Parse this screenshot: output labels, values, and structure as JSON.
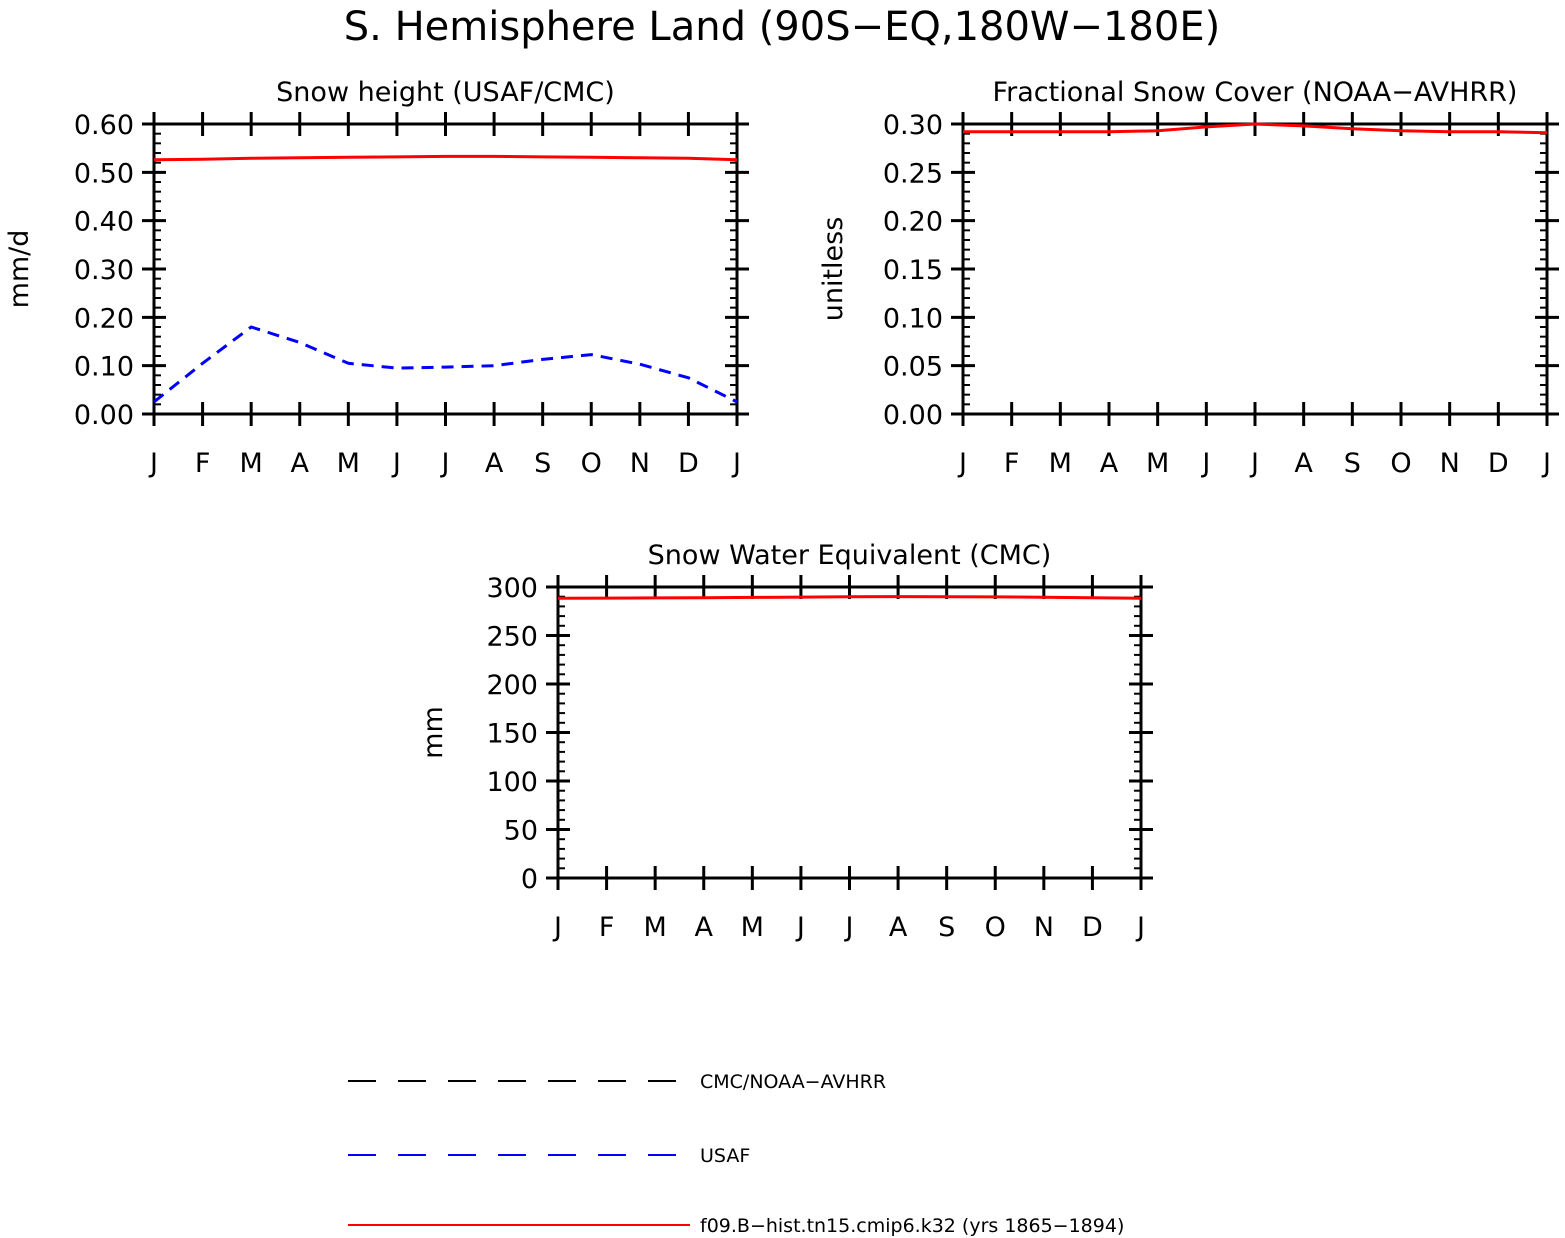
{
  "figure": {
    "title": "S. Hemisphere Land (90S−EQ,180W−180E)"
  },
  "colors": {
    "obs_line": "#000000",
    "usaf_line": "#0000ff",
    "model_line": "#ff0000",
    "axis": "#000000"
  },
  "legend": [
    {
      "label": "CMC/NOAA−AVHRR",
      "color": "#000000",
      "dash": "long-dash"
    },
    {
      "label": "USAF",
      "color": "#0000ff",
      "dash": "long-dash"
    },
    {
      "label": "f09.B−hist.tn15.cmip6.k32 (yrs 1865−1894)",
      "color": "#ff0000",
      "dash": "solid"
    }
  ],
  "chart_data": [
    {
      "type": "line",
      "title": "Snow height (USAF/CMC)",
      "ylabel": "mm/d",
      "xlabel": "",
      "categories": [
        "J",
        "F",
        "M",
        "A",
        "M",
        "J",
        "J",
        "A",
        "S",
        "O",
        "N",
        "D",
        "J"
      ],
      "ylim": [
        0,
        0.6
      ],
      "yticks": [
        "0.00",
        "0.10",
        "0.20",
        "0.30",
        "0.40",
        "0.50",
        "0.60"
      ],
      "series": [
        {
          "name": "CMC/NOAA−AVHRR",
          "color": "#000000",
          "dash": "long-dash",
          "values": [
            0,
            0,
            0,
            0,
            0,
            0,
            0,
            0,
            0,
            0,
            0,
            0,
            0
          ]
        },
        {
          "name": "USAF",
          "color": "#0000ff",
          "dash": "dash",
          "values": [
            0.025,
            0.105,
            0.18,
            0.148,
            0.105,
            0.095,
            0.097,
            0.1,
            0.113,
            0.123,
            0.103,
            0.075,
            0.025
          ]
        },
        {
          "name": "f09.B−hist.tn15.cmip6.k32 (yrs 1865−1894)",
          "color": "#ff0000",
          "dash": "solid",
          "values": [
            0.526,
            0.527,
            0.529,
            0.53,
            0.531,
            0.532,
            0.533,
            0.533,
            0.532,
            0.531,
            0.53,
            0.529,
            0.526
          ]
        }
      ]
    },
    {
      "type": "line",
      "title": "Fractional Snow Cover (NOAA−AVHRR)",
      "ylabel": "unitless",
      "xlabel": "",
      "categories": [
        "J",
        "F",
        "M",
        "A",
        "M",
        "J",
        "J",
        "A",
        "S",
        "O",
        "N",
        "D",
        "J"
      ],
      "ylim": [
        0,
        0.3
      ],
      "yticks": [
        "0.00",
        "0.05",
        "0.10",
        "0.15",
        "0.20",
        "0.25",
        "0.30"
      ],
      "series": [
        {
          "name": "CMC/NOAA−AVHRR",
          "color": "#000000",
          "dash": "long-dash",
          "values": [
            0,
            0,
            0,
            0,
            0,
            0,
            0,
            0,
            0,
            0,
            0,
            0,
            0
          ]
        },
        {
          "name": "f09.B−hist.tn15.cmip6.k32 (yrs 1865−1894)",
          "color": "#ff0000",
          "dash": "solid",
          "values": [
            0.292,
            0.292,
            0.292,
            0.292,
            0.293,
            0.297,
            0.3,
            0.298,
            0.295,
            0.293,
            0.292,
            0.292,
            0.291
          ]
        }
      ]
    },
    {
      "type": "line",
      "title": "Snow Water Equivalent (CMC)",
      "ylabel": "mm",
      "xlabel": "",
      "categories": [
        "J",
        "F",
        "M",
        "A",
        "M",
        "J",
        "J",
        "A",
        "S",
        "O",
        "N",
        "D",
        "J"
      ],
      "ylim": [
        0,
        300
      ],
      "yticks": [
        "0",
        "50",
        "100",
        "150",
        "200",
        "250",
        "300"
      ],
      "series": [
        {
          "name": "CMC/NOAA−AVHRR",
          "color": "#000000",
          "dash": "long-dash",
          "values": [
            0,
            0,
            0,
            0,
            0,
            0,
            0,
            0,
            0,
            0,
            0,
            0,
            0
          ]
        },
        {
          "name": "f09.B−hist.tn15.cmip6.k32 (yrs 1865−1894)",
          "color": "#ff0000",
          "dash": "solid",
          "values": [
            288.5,
            288.6,
            288.8,
            289.0,
            289.3,
            289.6,
            289.9,
            290.1,
            290.0,
            289.8,
            289.5,
            289.0,
            288.4
          ]
        }
      ]
    }
  ]
}
